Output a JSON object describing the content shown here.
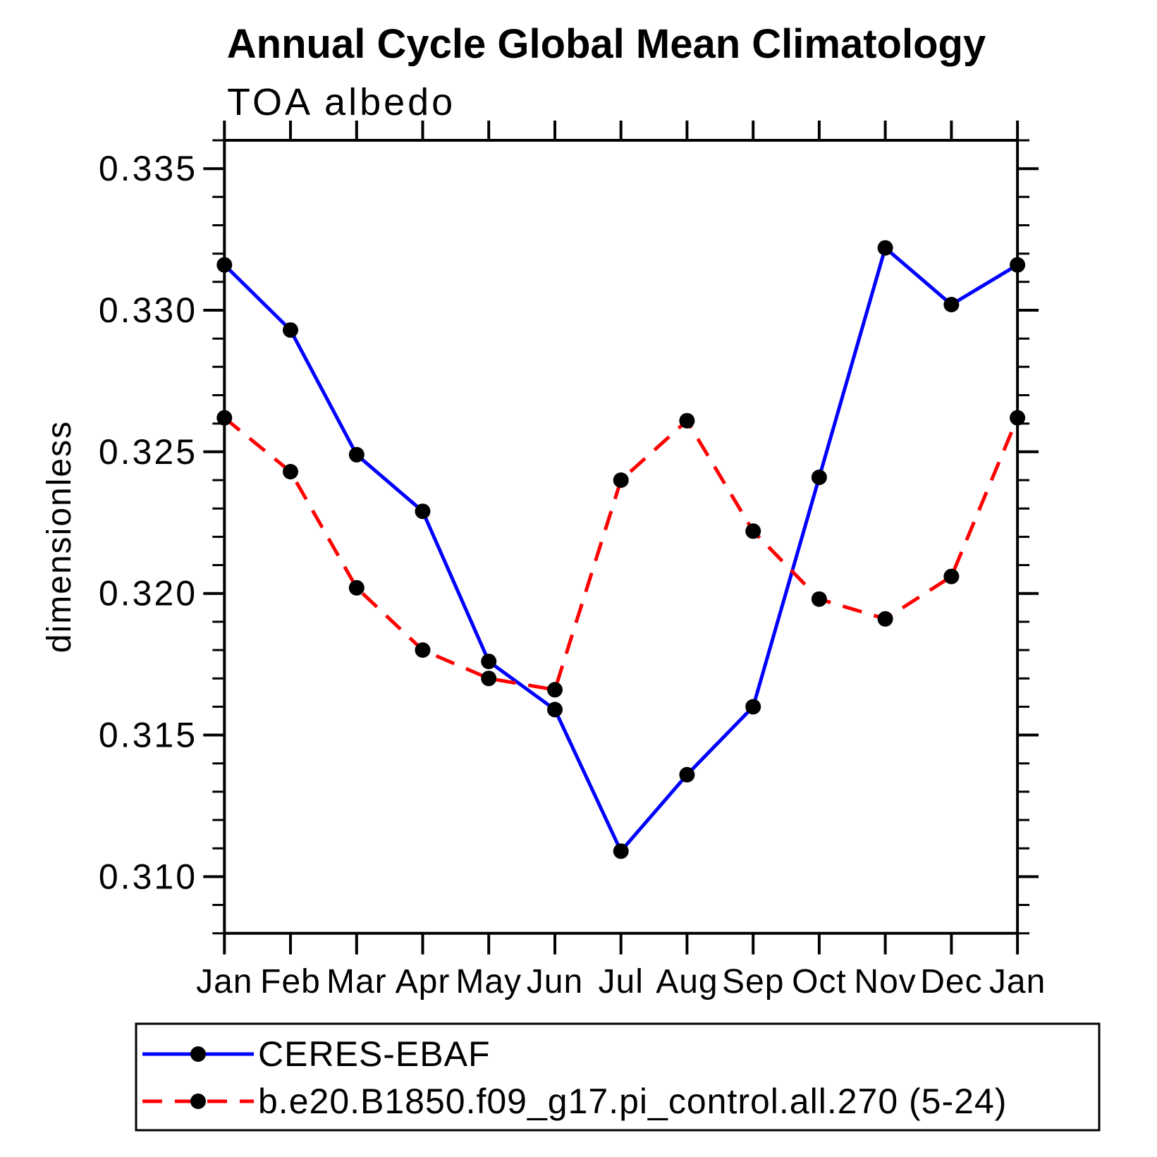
{
  "title": "Annual Cycle Global Mean Climatology",
  "subtitle": "TOA albedo",
  "y_axis": {
    "label": "dimensionless",
    "tick_labels": [
      "0.335",
      "0.330",
      "0.325",
      "0.320",
      "0.315",
      "0.310"
    ]
  },
  "x_axis": {
    "labels": [
      "Jan",
      "Feb",
      "Mar",
      "Apr",
      "May",
      "Jun",
      "Jul",
      "Aug",
      "Sep",
      "Oct",
      "Nov",
      "Dec",
      "Jan"
    ]
  },
  "chart_data": {
    "type": "line",
    "title": "Annual Cycle Global Mean Climatology",
    "subtitle": "TOA albedo",
    "xlabel": "",
    "ylabel": "dimensionless",
    "categories": [
      "Jan",
      "Feb",
      "Mar",
      "Apr",
      "May",
      "Jun",
      "Jul",
      "Aug",
      "Sep",
      "Oct",
      "Nov",
      "Dec",
      "Jan"
    ],
    "series": [
      {
        "name": "CERES-EBAF",
        "color": "#0000ff",
        "line_style": "solid",
        "marker": "filled-circle",
        "marker_color": "#000000",
        "values": [
          0.3316,
          0.3293,
          0.3249,
          0.3229,
          0.3176,
          0.3159,
          0.3109,
          0.3136,
          0.316,
          0.3241,
          0.3322,
          0.3302,
          0.3316
        ]
      },
      {
        "name": "b.e20.B1850.f09_g17.pi_control.all.270 (5-24)",
        "color": "#ff0000",
        "line_style": "dashed",
        "marker": "filled-circle",
        "marker_color": "#000000",
        "values": [
          0.3262,
          0.3243,
          0.3202,
          0.318,
          0.317,
          0.3166,
          0.324,
          0.3261,
          0.3222,
          0.3198,
          0.3191,
          0.3206,
          0.3262
        ]
      }
    ],
    "ylim": [
      0.308,
      0.336
    ],
    "yticks": [
      0.31,
      0.315,
      0.32,
      0.325,
      0.33,
      0.335
    ],
    "y_minor_step": 0.001,
    "grid": false,
    "legend_position": "bottom"
  },
  "frame_color": "#000000",
  "background_color": "#ffffff"
}
